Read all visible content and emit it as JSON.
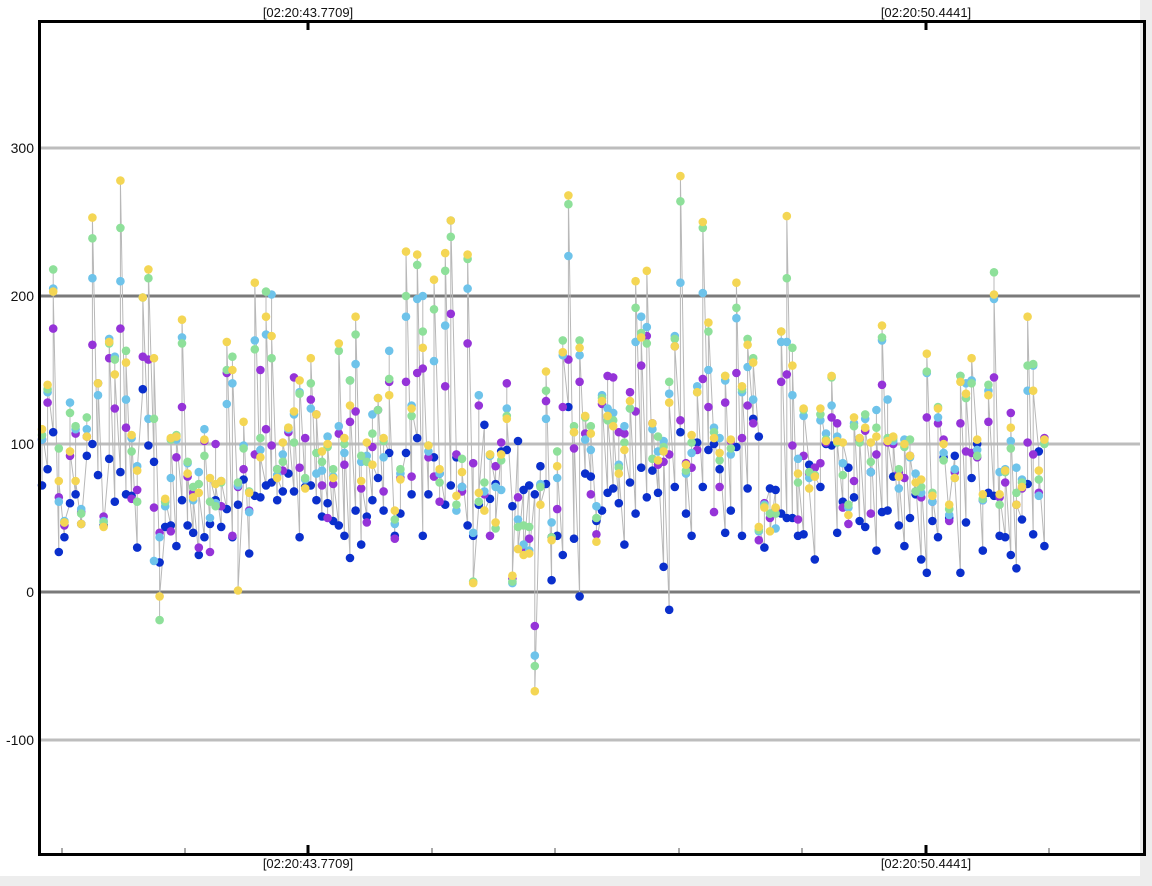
{
  "chart_data": {
    "type": "scatter",
    "title": "",
    "xlabel": "",
    "ylabel": "",
    "ylim": [
      -175,
      385
    ],
    "y_ticks": [
      300,
      200,
      100,
      0,
      -100
    ],
    "y_tick_labels": [
      "300",
      "200",
      "100",
      "0",
      "-100"
    ],
    "major_gridlines": [
      200,
      0
    ],
    "grid": true,
    "x_labels_top": [
      "[02:20:43.7709]",
      "[02:20:50.4441]"
    ],
    "x_labels_bottom": [
      "[02:20:43.7709]",
      "[02:20:50.4441]"
    ],
    "legend": "none",
    "series_colors": [
      "#0a2fcc",
      "#9533d8",
      "#6ec3ea",
      "#8ee09a",
      "#f4d654"
    ],
    "connector_color": "#b8b8b8",
    "x": [
      0,
      1,
      2,
      3,
      4,
      5,
      6,
      7,
      8,
      9,
      10,
      11,
      12,
      13,
      14,
      15,
      16,
      17,
      18,
      19,
      20,
      21,
      22,
      23,
      24,
      25,
      26,
      27,
      28,
      29,
      30,
      31,
      32,
      33,
      34,
      35,
      36,
      37,
      38,
      39,
      40,
      41,
      42,
      43,
      44,
      45,
      46,
      47,
      48,
      49,
      50,
      51,
      52,
      53,
      54,
      55,
      56,
      57,
      58,
      59,
      60,
      61,
      62,
      63,
      64,
      65,
      66,
      67,
      68,
      69,
      70,
      71,
      72,
      73,
      74,
      75,
      76,
      77,
      78,
      79,
      80,
      81,
      82,
      83,
      84,
      85,
      86,
      87,
      88,
      89,
      90,
      91,
      92,
      93,
      94,
      95,
      96,
      97,
      98,
      99,
      100,
      101,
      102,
      103,
      104,
      105,
      106,
      107,
      108,
      109,
      110,
      111,
      112,
      113,
      114,
      115,
      116,
      117,
      118,
      119,
      120,
      121,
      122,
      123,
      124,
      125,
      126,
      127,
      128,
      129,
      130,
      131,
      132,
      133,
      134,
      135,
      136,
      137,
      138,
      139,
      140,
      141,
      142,
      143,
      144,
      145,
      146,
      147,
      148,
      149,
      150,
      151,
      152,
      153,
      154,
      155,
      156,
      157,
      158,
      159,
      160,
      161,
      162,
      163,
      164,
      165,
      166,
      167,
      168,
      169,
      170,
      171,
      172,
      173,
      174,
      175,
      176,
      177,
      178,
      179
    ],
    "series": [
      {
        "values": [
          72,
          83,
          108,
          27,
          37,
          60,
          66,
          46,
          92,
          100,
          79,
          45,
          90,
          61,
          81,
          66,
          65,
          30,
          137,
          99,
          88,
          20,
          44,
          45,
          31,
          62,
          45,
          40,
          25,
          37,
          46,
          62,
          44,
          56,
          37,
          59,
          76,
          26,
          65,
          64,
          72,
          74,
          62,
          68,
          80,
          68,
          37,
          71,
          72,
          62,
          51,
          60,
          48,
          45,
          38,
          23,
          55,
          32,
          51,
          62,
          77,
          55,
          94,
          38,
          53,
          94,
          66,
          104,
          38,
          66,
          91,
          80,
          59,
          72,
          91,
          71,
          45,
          38,
          59,
          113,
          63,
          73,
          95,
          96,
          58,
          102,
          69,
          72,
          66,
          85,
          73,
          8,
          38,
          25,
          125,
          36,
          -3,
          80,
          78,
          48,
          55,
          67,
          70,
          60,
          32,
          74,
          53,
          84,
          64,
          82,
          67,
          17,
          -12,
          71,
          108,
          53,
          38,
          101,
          71,
          96,
          100,
          83,
          40,
          55,
          98,
          38,
          70,
          117,
          105,
          30,
          70,
          69,
          53,
          50,
          50,
          38,
          39,
          86,
          22,
          71,
          100,
          99,
          40,
          61,
          84,
          64,
          48,
          44,
          81,
          28,
          54,
          55,
          78,
          45,
          31,
          50,
          66,
          22,
          13,
          48,
          37,
          91,
          50,
          92,
          13,
          47,
          77,
          100,
          28,
          67,
          65,
          38,
          37,
          25,
          16,
          49,
          73,
          39,
          95,
          31
        ]
      },
      {
        "values": [
          103,
          128,
          178,
          64,
          45,
          92,
          107,
          54,
          105,
          167,
          141,
          51,
          158,
          124,
          178,
          111,
          63,
          69,
          159,
          157,
          57,
          40,
          61,
          41,
          91,
          125,
          78,
          67,
          30,
          102,
          27,
          100,
          58,
          148,
          38,
          71,
          83,
          55,
          93,
          150,
          110,
          99,
          83,
          82,
          108,
          145,
          84,
          104,
          130,
          120,
          72,
          50,
          73,
          107,
          86,
          115,
          122,
          70,
          47,
          98,
          123,
          68,
          142,
          36,
          77,
          142,
          78,
          148,
          151,
          91,
          78,
          61,
          139,
          188,
          93,
          68,
          168,
          87,
          126,
          66,
          38,
          85,
          101,
          141,
          9,
          64,
          28,
          36,
          -23,
          72,
          129,
          37,
          56,
          125,
          157,
          97,
          142,
          107,
          66,
          39,
          127,
          146,
          145,
          108,
          107,
          135,
          122,
          153,
          173,
          114,
          86,
          88,
          93,
          166,
          116,
          87,
          84,
          96,
          144,
          125,
          54,
          71,
          128,
          102,
          148,
          104,
          126,
          114,
          35,
          60,
          50,
          56,
          142,
          147,
          99,
          49,
          92,
          80,
          84,
          87,
          101,
          118,
          114,
          57,
          46,
          75,
          103,
          109,
          53,
          93,
          140,
          101,
          100,
          81,
          77,
          92,
          68,
          64,
          118,
          61,
          114,
          103,
          48,
          81,
          114,
          95,
          94,
          91,
          62,
          115,
          145,
          64,
          74,
          121,
          59,
          70,
          101,
          93,
          67,
          104
        ]
      },
      {
        "values": [
          103,
          135,
          205,
          61,
          48,
          128,
          110,
          56,
          110,
          212,
          133,
          48,
          171,
          159,
          210,
          130,
          104,
          85,
          199,
          117,
          21,
          37,
          58,
          77,
          103,
          172,
          87,
          62,
          81,
          110,
          50,
          60,
          75,
          127,
          141,
          72,
          99,
          54,
          170,
          96,
          174,
          201,
          79,
          93,
          110,
          120,
          135,
          76,
          124,
          80,
          82,
          105,
          78,
          112,
          94,
          143,
          154,
          88,
          92,
          120,
          131,
          91,
          163,
          46,
          80,
          186,
          126,
          198,
          200,
          95,
          156,
          80,
          180,
          251,
          55,
          71,
          205,
          40,
          133,
          68,
          92,
          71,
          69,
          124,
          6,
          49,
          32,
          28,
          -43,
          73,
          117,
          47,
          77,
          160,
          227,
          108,
          160,
          103,
          96,
          58,
          133,
          124,
          121,
          86,
          112,
          124,
          169,
          186,
          179,
          110,
          95,
          102,
          134,
          173,
          209,
          80,
          94,
          139,
          202,
          150,
          111,
          104,
          143,
          93,
          185,
          135,
          152,
          130,
          41,
          59,
          53,
          43,
          169,
          169,
          133,
          90,
          119,
          77,
          79,
          116,
          107,
          126,
          105,
          87,
          57,
          114,
          104,
          117,
          81,
          123,
          170,
          130,
          102,
          70,
          103,
          91,
          80,
          67,
          148,
          61,
          118,
          94,
          52,
          83,
          146,
          141,
          143,
          96,
          62,
          136,
          198,
          81,
          83,
          102,
          84,
          76,
          136,
          153,
          65,
          101
        ]
      },
      {
        "values": [
          106,
          137,
          218,
          97,
          47,
          121,
          112,
          53,
          118,
          239,
          141,
          47,
          168,
          157,
          246,
          163,
          95,
          61,
          199,
          212,
          117,
          -19,
          61,
          103,
          106,
          168,
          88,
          71,
          73,
          92,
          61,
          58,
          74,
          150,
          159,
          74,
          97,
          68,
          164,
          104,
          203,
          158,
          83,
          88,
          111,
          101,
          134,
          77,
          141,
          94,
          88,
          98,
          83,
          163,
          100,
          143,
          174,
          92,
          88,
          107,
          123,
          102,
          144,
          49,
          83,
          200,
          119,
          221,
          176,
          99,
          191,
          74,
          217,
          240,
          59,
          90,
          225,
          7,
          61,
          74,
          93,
          43,
          89,
          119,
          7,
          44,
          45,
          44,
          -50,
          71,
          136,
          37,
          95,
          170,
          262,
          112,
          170,
          118,
          112,
          50,
          131,
          116,
          116,
          84,
          101,
          124,
          192,
          175,
          168,
          90,
          105,
          98,
          142,
          171,
          264,
          82,
          101,
          135,
          246,
          176,
          108,
          89,
          146,
          97,
          192,
          137,
          171,
          158,
          42,
          58,
          53,
          53,
          176,
          212,
          165,
          74,
          123,
          81,
          79,
          120,
          103,
          145,
          101,
          79,
          59,
          112,
          101,
          120,
          88,
          111,
          172,
          104,
          104,
          83,
          98,
          103,
          68,
          71,
          149,
          67,
          125,
          89,
          56,
          77,
          146,
          131,
          141,
          92,
          63,
          140,
          216,
          59,
          81,
          97,
          67,
          74,
          153,
          154,
          76,
          100
        ]
      },
      {
        "values": [
          110,
          140,
          203,
          75,
          47,
          95,
          75,
          46,
          105,
          253,
          141,
          44,
          169,
          147,
          278,
          155,
          106,
          82,
          199,
          218,
          158,
          -3,
          63,
          104,
          105,
          184,
          80,
          64,
          67,
          103,
          77,
          73,
          75,
          169,
          150,
          1,
          115,
          67,
          209,
          91,
          186,
          173,
          77,
          101,
          111,
          122,
          143,
          70,
          158,
          120,
          95,
          100,
          77,
          168,
          104,
          126,
          186,
          75,
          101,
          86,
          131,
          104,
          133,
          55,
          76,
          230,
          124,
          228,
          165,
          99,
          211,
          83,
          229,
          251,
          65,
          81,
          228,
          6,
          67,
          55,
          93,
          47,
          93,
          117,
          11,
          29,
          25,
          26,
          -67,
          59,
          149,
          35,
          85,
          162,
          268,
          108,
          165,
          119,
          107,
          34,
          129,
          119,
          112,
          80,
          96,
          129,
          210,
          172,
          217,
          114,
          89,
          95,
          128,
          166,
          281,
          86,
          106,
          135,
          250,
          182,
          104,
          94,
          146,
          103,
          209,
          139,
          167,
          155,
          44,
          57,
          41,
          57,
          176,
          254,
          153,
          80,
          124,
          70,
          78,
          124,
          102,
          146,
          102,
          101,
          52,
          118,
          104,
          111,
          101,
          105,
          180,
          102,
          105,
          78,
          100,
          92,
          74,
          76,
          161,
          65,
          124,
          100,
          59,
          77,
          142,
          134,
          158,
          103,
          66,
          133,
          201,
          66,
          82,
          111,
          59,
          71,
          186,
          136,
          82,
          103
        ]
      }
    ]
  }
}
